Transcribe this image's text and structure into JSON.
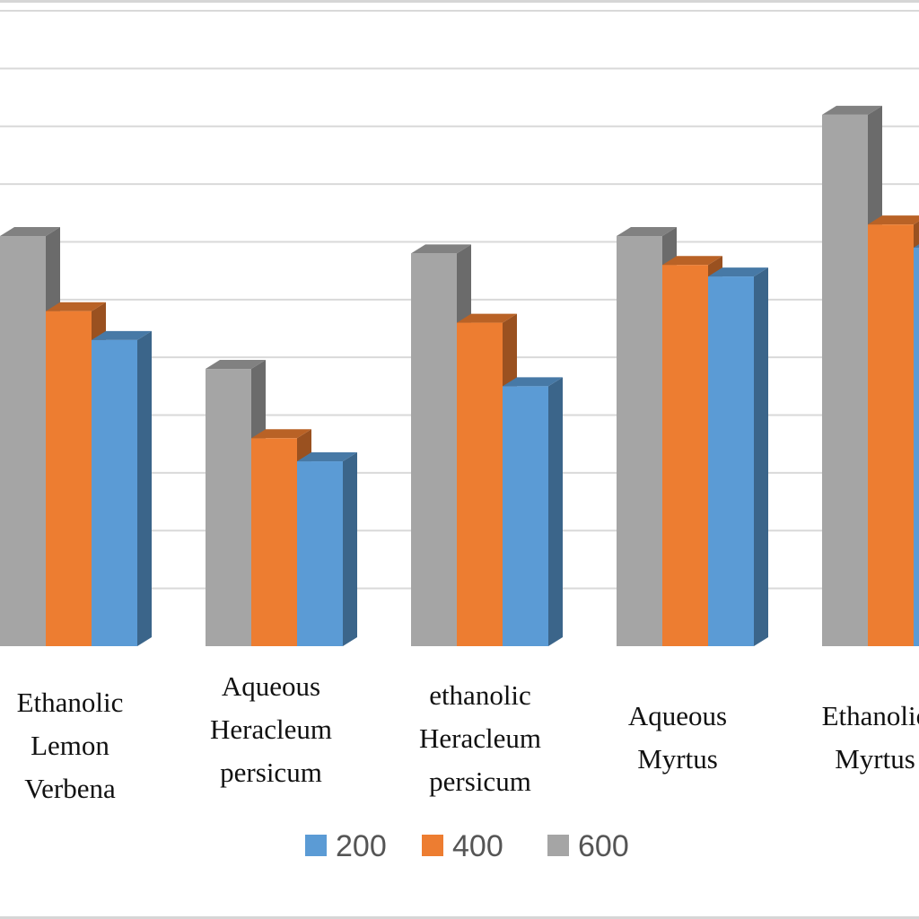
{
  "chart_data": {
    "type": "bar",
    "categories": [
      [
        "Ethanolic",
        "Lemon",
        "Verbena"
      ],
      [
        "Aqueous",
        "Heracleum",
        "persicum"
      ],
      [
        "ethanolic",
        "Heracleum",
        "persicum"
      ],
      [
        "Aqueous",
        "Myrtus"
      ],
      [
        "Ethanolic",
        "Myrtus"
      ]
    ],
    "series": [
      {
        "name": "200",
        "color": "#5b9bd5",
        "values": [
          5.3,
          3.2,
          4.5,
          6.4,
          6.9
        ]
      },
      {
        "name": "400",
        "color": "#ed7d31",
        "values": [
          5.8,
          3.6,
          5.6,
          6.6,
          7.3
        ]
      },
      {
        "name": "600",
        "color": "#a5a5a5",
        "values": [
          7.1,
          4.8,
          6.8,
          7.1,
          9.2
        ]
      }
    ],
    "ylim": [
      0,
      11
    ],
    "grid": true,
    "legend": "bottom"
  }
}
